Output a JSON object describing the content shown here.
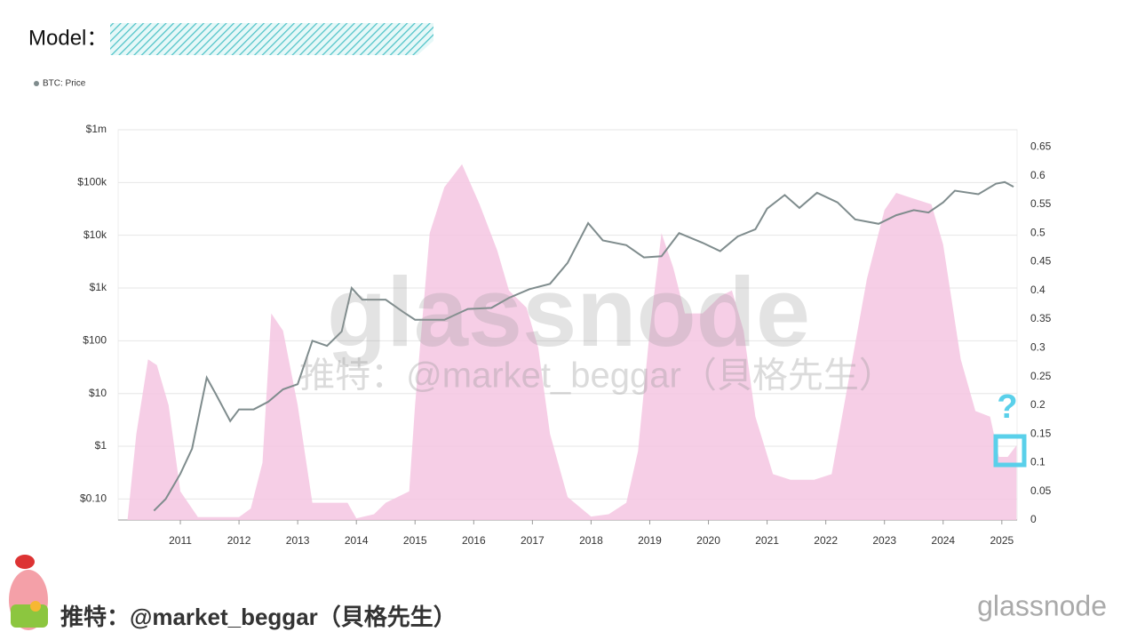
{
  "chart_data": {
    "type": "line",
    "title": "Model：",
    "legend": "top-left",
    "log_scale": true,
    "grid": true,
    "xlim": [
      2009.94,
      2025.26
    ],
    "xticks": [
      2011,
      2012,
      2013,
      2014,
      2015,
      2016,
      2017,
      2018,
      2019,
      2020,
      2021,
      2022,
      2023,
      2024,
      2025
    ],
    "ylim": [
      0.04,
      1000000
    ],
    "yticks": [
      {
        "value": 0.1,
        "label": "$0.10"
      },
      {
        "value": 1,
        "label": "$1"
      },
      {
        "value": 10,
        "label": "$10"
      },
      {
        "value": 100,
        "label": "$100"
      },
      {
        "value": 1000,
        "label": "$1k"
      },
      {
        "value": 10000,
        "label": "$10k"
      },
      {
        "value": 100000,
        "label": "$100k"
      },
      {
        "value": 1000000,
        "label": "$1m"
      }
    ],
    "y2lim": [
      0,
      0.68
    ],
    "y2ticks": [
      0,
      0.05,
      0.1,
      0.15,
      0.2,
      0.25,
      0.3,
      0.35,
      0.4,
      0.45,
      0.5,
      0.55,
      0.6,
      0.65
    ],
    "series": [
      {
        "name": "BTC: Price",
        "color": "#7f8c8d",
        "x": [
          2010.55,
          2010.75,
          2011.0,
          2011.2,
          2011.45,
          2011.6,
          2011.85,
          2012.0,
          2012.25,
          2012.5,
          2012.75,
          2013.0,
          2013.25,
          2013.5,
          2013.75,
          2013.92,
          2014.1,
          2014.5,
          2014.8,
          2015.0,
          2015.5,
          2015.9,
          2016.3,
          2016.6,
          2016.95,
          2017.3,
          2017.6,
          2017.95,
          2018.2,
          2018.6,
          2018.9,
          2019.2,
          2019.5,
          2019.9,
          2020.2,
          2020.5,
          2020.8,
          2021.0,
          2021.3,
          2021.55,
          2021.85,
          2022.2,
          2022.5,
          2022.9,
          2023.2,
          2023.5,
          2023.75,
          2024.0,
          2024.2,
          2024.6,
          2024.9,
          2025.05,
          2025.2
        ],
        "values": [
          0.06,
          0.1,
          0.3,
          0.9,
          20,
          10,
          3,
          5,
          5,
          7,
          12,
          15,
          100,
          80,
          150,
          1000,
          600,
          600,
          350,
          250,
          250,
          400,
          420,
          650,
          950,
          1200,
          3000,
          17000,
          8000,
          6500,
          3800,
          4000,
          11000,
          7200,
          5000,
          9500,
          13000,
          32000,
          58000,
          33000,
          64000,
          42000,
          20000,
          16500,
          24000,
          30000,
          27000,
          42000,
          70000,
          60000,
          95000,
          102000,
          83000
        ]
      },
      {
        "color": "#f5c6e2",
        "axis": "y2",
        "x": [
          2010.1,
          2010.25,
          2010.45,
          2010.6,
          2010.8,
          2011.0,
          2011.3,
          2012.0,
          2012.2,
          2012.4,
          2012.55,
          2012.75,
          2013.0,
          2013.25,
          2013.6,
          2013.85,
          2014.0,
          2014.3,
          2014.5,
          2014.9,
          2015.0,
          2015.25,
          2015.5,
          2015.8,
          2016.1,
          2016.4,
          2016.6,
          2016.9,
          2017.1,
          2017.3,
          2017.6,
          2018.0,
          2018.3,
          2018.6,
          2018.8,
          2019.0,
          2019.2,
          2019.4,
          2019.6,
          2019.9,
          2020.2,
          2020.4,
          2020.6,
          2020.8,
          2021.1,
          2021.4,
          2021.8,
          2022.1,
          2022.4,
          2022.7,
          2023.0,
          2023.2,
          2023.5,
          2023.8,
          2024.0,
          2024.3,
          2024.55,
          2024.8,
          2024.95,
          2025.1,
          2025.25
        ],
        "values": [
          0,
          0.15,
          0.28,
          0.27,
          0.2,
          0.05,
          0.005,
          0.005,
          0.02,
          0.1,
          0.36,
          0.33,
          0.2,
          0.03,
          0.03,
          0.03,
          0.003,
          0.01,
          0.03,
          0.05,
          0.2,
          0.5,
          0.58,
          0.62,
          0.55,
          0.47,
          0.4,
          0.37,
          0.3,
          0.15,
          0.04,
          0.006,
          0.01,
          0.03,
          0.12,
          0.33,
          0.5,
          0.44,
          0.36,
          0.36,
          0.39,
          0.4,
          0.33,
          0.18,
          0.08,
          0.07,
          0.07,
          0.08,
          0.25,
          0.42,
          0.54,
          0.57,
          0.56,
          0.55,
          0.48,
          0.28,
          0.19,
          0.18,
          0.11,
          0.11,
          0.13
        ]
      }
    ],
    "question": "?",
    "watermark": "glassnode",
    "handle_watermark": "推特：@market_beggar（貝格先生）",
    "footer_handle": "推特：@market_beggar（貝格先生）",
    "brand": "glassnode"
  }
}
